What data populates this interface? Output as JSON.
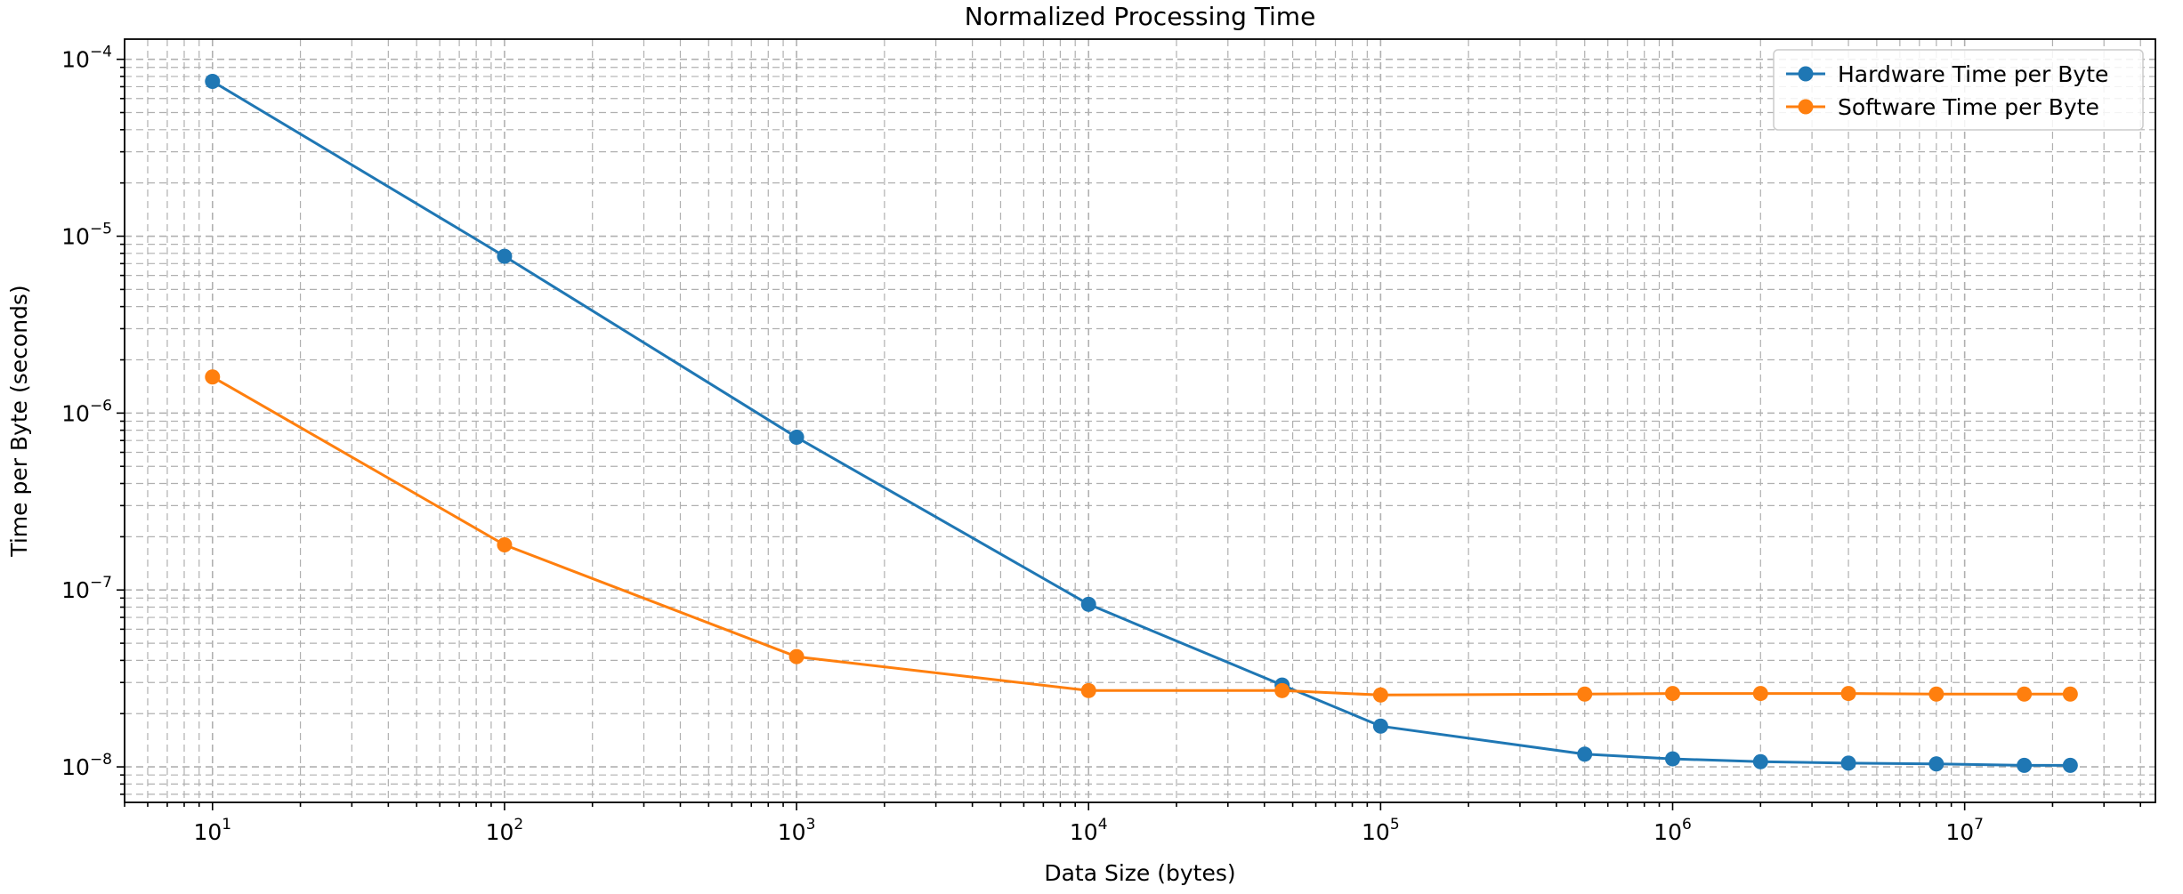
{
  "chart_data": {
    "type": "line",
    "title": "Normalized Processing Time",
    "xlabel": "Data Size (bytes)",
    "ylabel": "Time per Byte (seconds)",
    "x_scale": "log",
    "y_scale": "log",
    "xlim": [
      5,
      45000000
    ],
    "ylim": [
      6.3e-09,
      0.00013
    ],
    "grid": "major and minor, dashed",
    "legend_position": "top-right",
    "x_ticks": [
      {
        "base": "10",
        "exp": "1",
        "value": 10
      },
      {
        "base": "10",
        "exp": "2",
        "value": 100
      },
      {
        "base": "10",
        "exp": "3",
        "value": 1000
      },
      {
        "base": "10",
        "exp": "4",
        "value": 10000
      },
      {
        "base": "10",
        "exp": "5",
        "value": 100000
      },
      {
        "base": "10",
        "exp": "6",
        "value": 1000000
      },
      {
        "base": "10",
        "exp": "7",
        "value": 10000000
      }
    ],
    "y_ticks": [
      {
        "base": "10",
        "exp": "−8",
        "value": 1e-08
      },
      {
        "base": "10",
        "exp": "−7",
        "value": 1e-07
      },
      {
        "base": "10",
        "exp": "−6",
        "value": 1e-06
      },
      {
        "base": "10",
        "exp": "−5",
        "value": 1e-05
      },
      {
        "base": "10",
        "exp": "−4",
        "value": 0.0001
      }
    ],
    "series": [
      {
        "name": "Hardware Time per Byte",
        "color": "#1f77b4",
        "marker": "circle",
        "x": [
          10,
          100,
          1000,
          10000,
          46000,
          100000,
          500000,
          1000000,
          2000000,
          4000000,
          8000000,
          16000000,
          23000000
        ],
        "y": [
          7.5e-05,
          7.7e-06,
          7.3e-07,
          8.3e-08,
          2.9e-08,
          1.7e-08,
          1.18e-08,
          1.11e-08,
          1.07e-08,
          1.05e-08,
          1.04e-08,
          1.02e-08,
          1.02e-08
        ]
      },
      {
        "name": "Software Time per Byte",
        "color": "#ff7f0e",
        "marker": "circle",
        "x": [
          10,
          100,
          1000,
          10000,
          46000,
          100000,
          500000,
          1000000,
          2000000,
          4000000,
          8000000,
          16000000,
          23000000
        ],
        "y": [
          1.6e-06,
          1.8e-07,
          4.2e-08,
          2.7e-08,
          2.7e-08,
          2.55e-08,
          2.58e-08,
          2.6e-08,
          2.6e-08,
          2.6e-08,
          2.58e-08,
          2.58e-08,
          2.58e-08
        ]
      }
    ]
  }
}
